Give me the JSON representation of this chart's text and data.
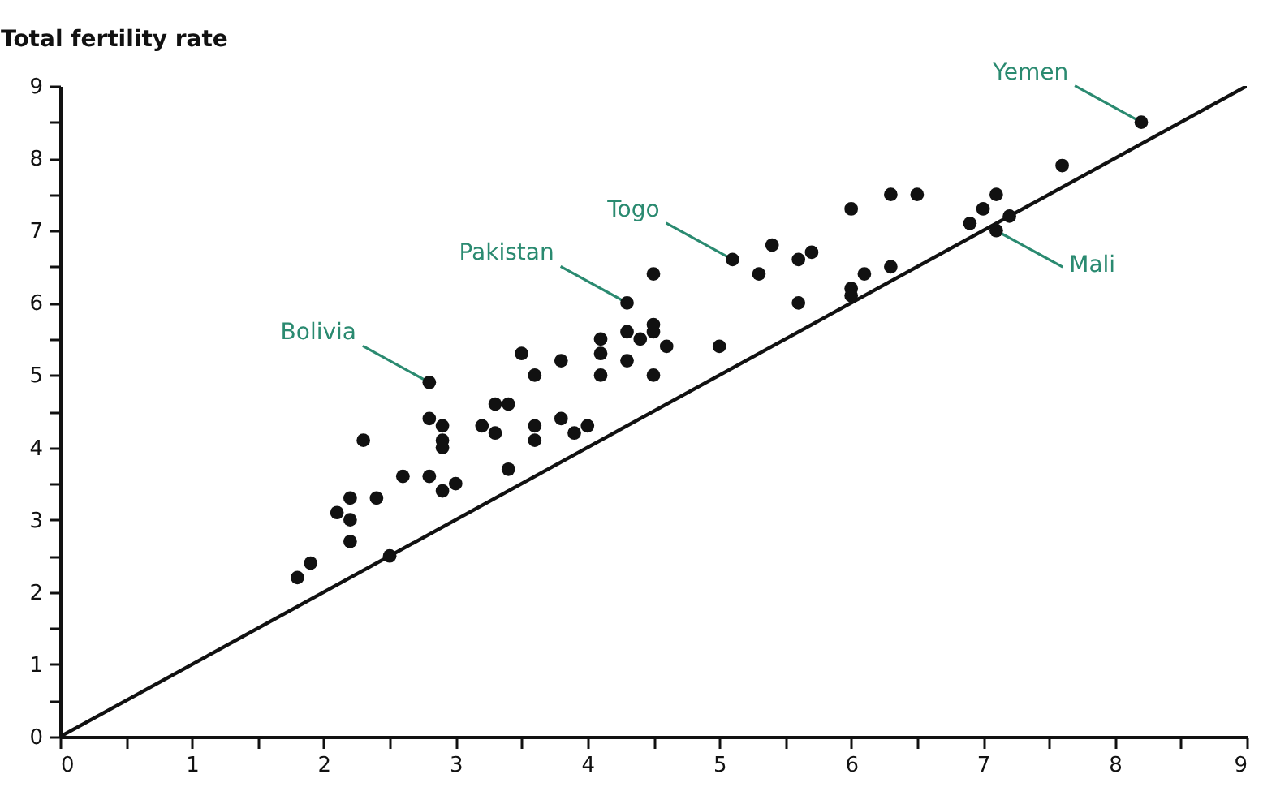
{
  "chart_data": {
    "type": "scatter",
    "ylabel": "Total fertility rate",
    "xlim": [
      0,
      9
    ],
    "ylim": [
      0,
      9
    ],
    "xticks": [
      0,
      {
        "value": 0.5,
        "label": null
      },
      1,
      {
        "value": 1.5,
        "label": null
      },
      2,
      {
        "value": 2.5,
        "label": null
      },
      3,
      {
        "value": 3.5,
        "label": null
      },
      4,
      {
        "value": 4.5,
        "label": null
      },
      5,
      {
        "value": 5.5,
        "label": null
      },
      6,
      {
        "value": 6.5,
        "label": null
      },
      7,
      {
        "value": 7.5,
        "label": null
      },
      8,
      {
        "value": 8.5,
        "label": null
      },
      9
    ],
    "yticks": [
      0,
      {
        "value": 0.5,
        "label": null
      },
      1,
      {
        "value": 1.5,
        "label": null
      },
      2,
      {
        "value": 2.5,
        "label": null
      },
      3,
      {
        "value": 3.5,
        "label": null
      },
      4,
      {
        "value": 4.5,
        "label": null
      },
      5,
      {
        "value": 5.5,
        "label": null
      },
      6,
      {
        "value": 6.5,
        "label": null
      },
      7,
      {
        "value": 7.5,
        "label": null
      },
      8,
      {
        "value": 8.5,
        "label": null
      },
      9
    ],
    "grid": false,
    "marker": "circle",
    "series": [
      {
        "color": "#111111",
        "x": [
          1.8,
          1.9,
          2.1,
          2.2,
          2.2,
          2.2,
          2.3,
          2.4,
          2.5,
          2.6,
          2.8,
          2.8,
          2.8,
          2.9,
          2.9,
          2.9,
          2.9,
          3.0,
          3.2,
          3.3,
          3.3,
          3.4,
          3.4,
          3.5,
          3.6,
          3.6,
          3.6,
          3.8,
          3.8,
          3.9,
          4.0,
          4.1,
          4.1,
          4.1,
          4.3,
          4.3,
          4.3,
          4.4,
          4.5,
          4.5,
          4.5,
          4.5,
          4.6,
          5.0,
          5.1,
          5.3,
          5.4,
          5.6,
          5.6,
          5.7,
          6.0,
          6.0,
          6.0,
          6.1,
          6.3,
          6.3,
          6.5,
          6.9,
          7.0,
          7.1,
          7.1,
          7.2,
          7.6,
          8.2
        ],
        "values": [
          2.2,
          2.4,
          3.1,
          3.0,
          3.3,
          2.7,
          4.1,
          3.3,
          2.5,
          3.6,
          4.9,
          4.4,
          3.6,
          4.3,
          4.1,
          4.0,
          3.4,
          3.5,
          4.3,
          4.6,
          4.2,
          4.6,
          3.7,
          5.3,
          5.0,
          4.3,
          4.1,
          5.2,
          4.4,
          4.2,
          4.3,
          5.5,
          5.3,
          5.0,
          6.0,
          5.6,
          5.2,
          5.5,
          6.4,
          5.7,
          5.6,
          5.0,
          5.4,
          5.4,
          6.6,
          6.4,
          6.8,
          6.6,
          6.0,
          6.7,
          7.3,
          6.2,
          6.1,
          6.4,
          7.5,
          6.5,
          7.5,
          7.1,
          7.3,
          7.5,
          7.0,
          7.2,
          7.9,
          8.5
        ]
      },
      {
        "type": "line",
        "color": "#111111",
        "marker": "none",
        "x": [
          0,
          9
        ],
        "values": [
          0,
          9
        ]
      }
    ],
    "annotations": [
      {
        "text": "Bolivia",
        "x": 2.8,
        "y": 4.9
      },
      {
        "text": "Pakistan",
        "x": 4.3,
        "y": 6.0
      },
      {
        "text": "Togo",
        "x": 5.1,
        "y": 6.6
      },
      {
        "text": "Yemen",
        "x": 8.2,
        "y": 8.5
      },
      {
        "text": "Mali",
        "x": 7.1,
        "y": 7.0
      }
    ]
  }
}
